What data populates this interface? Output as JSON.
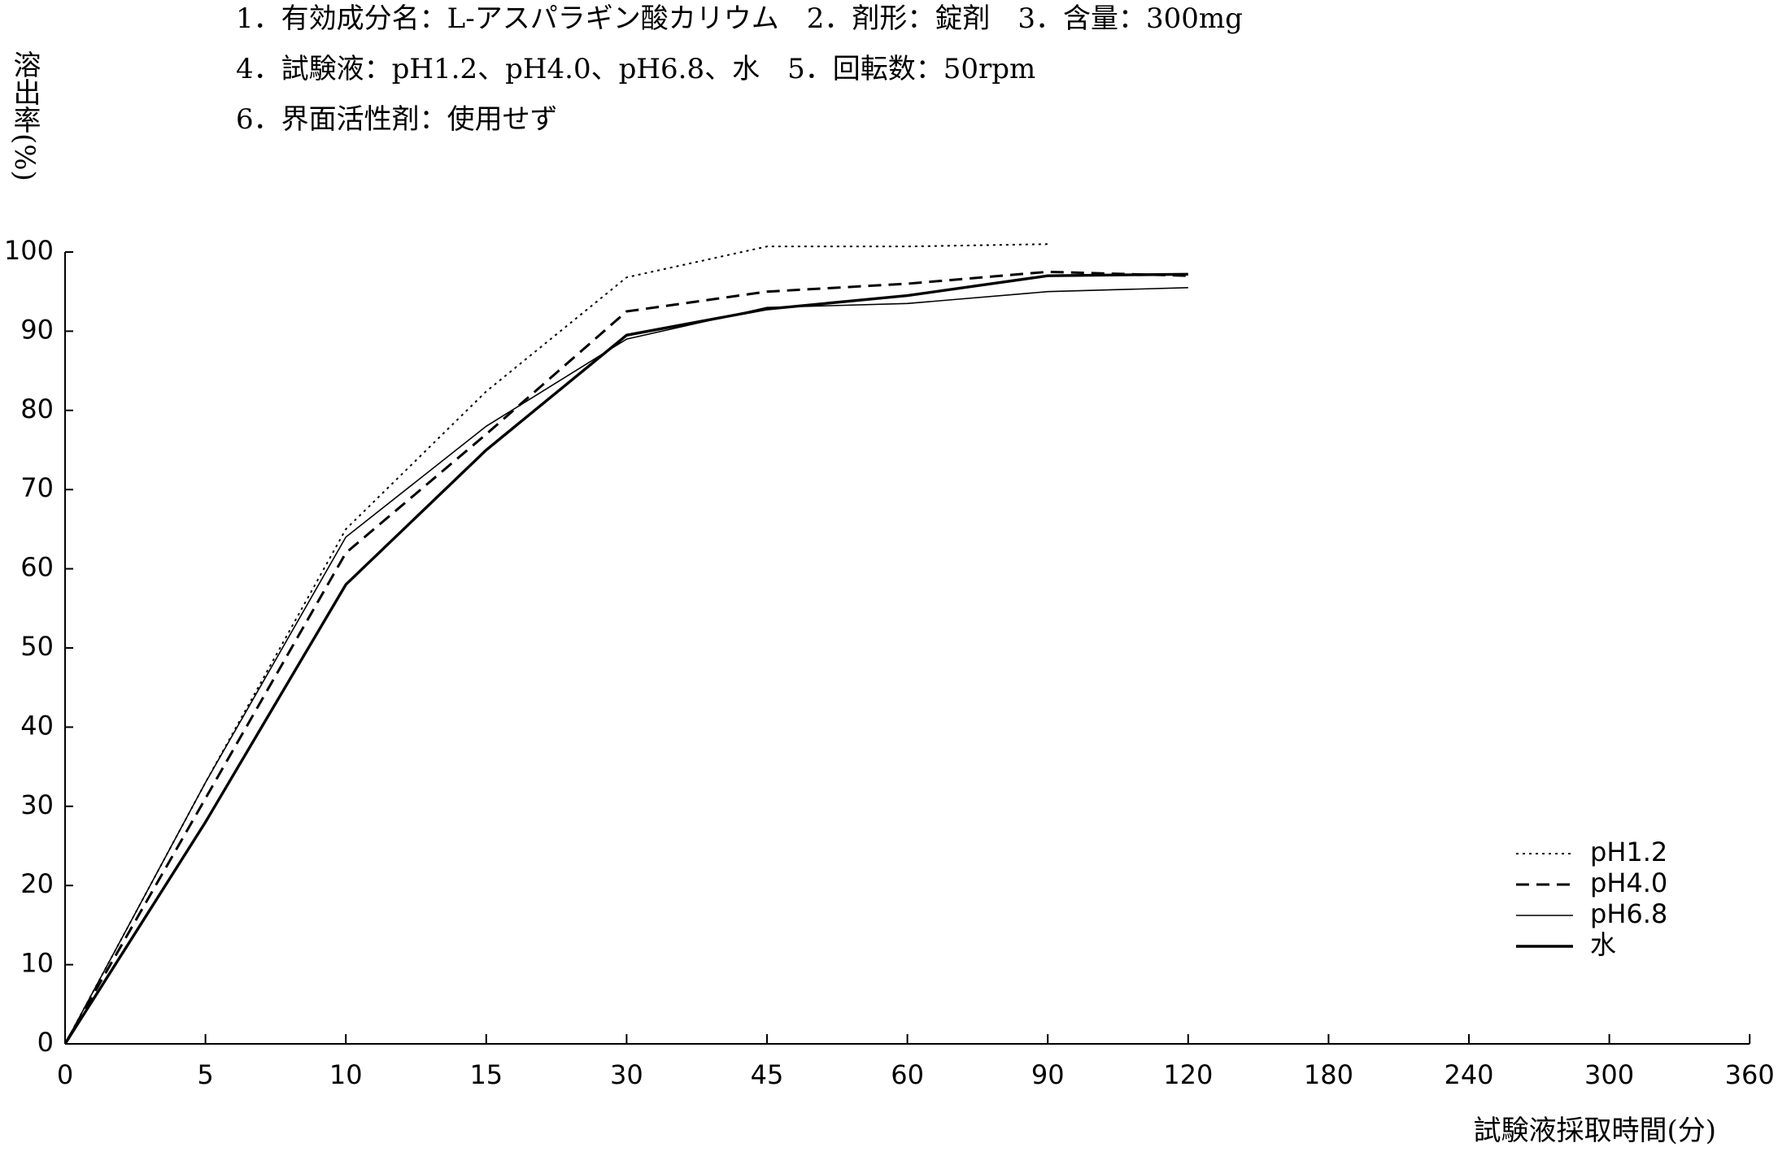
{
  "chart_data": {
    "type": "line",
    "annotations": [
      "1．有効成分名：L-アスパラギン酸カリウム　2．剤形：錠剤　3．含量：300mg",
      "4．試験液：pH1.2、pH4.0、pH6.8、水　5．回転数：50rpm",
      "6．界面活性剤：使用せず"
    ],
    "y_label": "溶出率(%)",
    "x_label": "試験液採取時間(分)",
    "categories": [
      "0",
      "5",
      "10",
      "15",
      "30",
      "45",
      "60",
      "90",
      "120",
      "180",
      "240",
      "300",
      "360"
    ],
    "series": [
      {
        "name": "pH1.2",
        "color": "#000000",
        "line_style": "dotted",
        "values": [
          0,
          33,
          65,
          82.4,
          96.8,
          100.7,
          100.7,
          101,
          null,
          null,
          null,
          null,
          null
        ]
      },
      {
        "name": "pH4.0",
        "color": "#000000",
        "line_style": "dashed",
        "values": [
          0,
          31,
          62,
          77,
          92.5,
          95,
          96,
          97.5,
          97,
          null,
          null,
          null,
          null
        ]
      },
      {
        "name": "pH6.8",
        "color": "#000000",
        "line_style": "thin",
        "values": [
          0,
          33,
          64,
          78,
          89,
          93,
          93.5,
          95,
          95.5,
          null,
          null,
          null,
          null
        ]
      },
      {
        "name": "水",
        "color": "#000000",
        "line_style": "thick",
        "values": [
          0,
          28,
          58,
          75,
          89.5,
          92.8,
          94.5,
          97,
          97.2,
          null,
          null,
          null,
          null
        ]
      }
    ],
    "ylim": [
      0,
      100
    ],
    "yticks": [
      0,
      10,
      20,
      30,
      40,
      50,
      60,
      70,
      80,
      90,
      100
    ],
    "grid": false,
    "legend": "lower right"
  }
}
